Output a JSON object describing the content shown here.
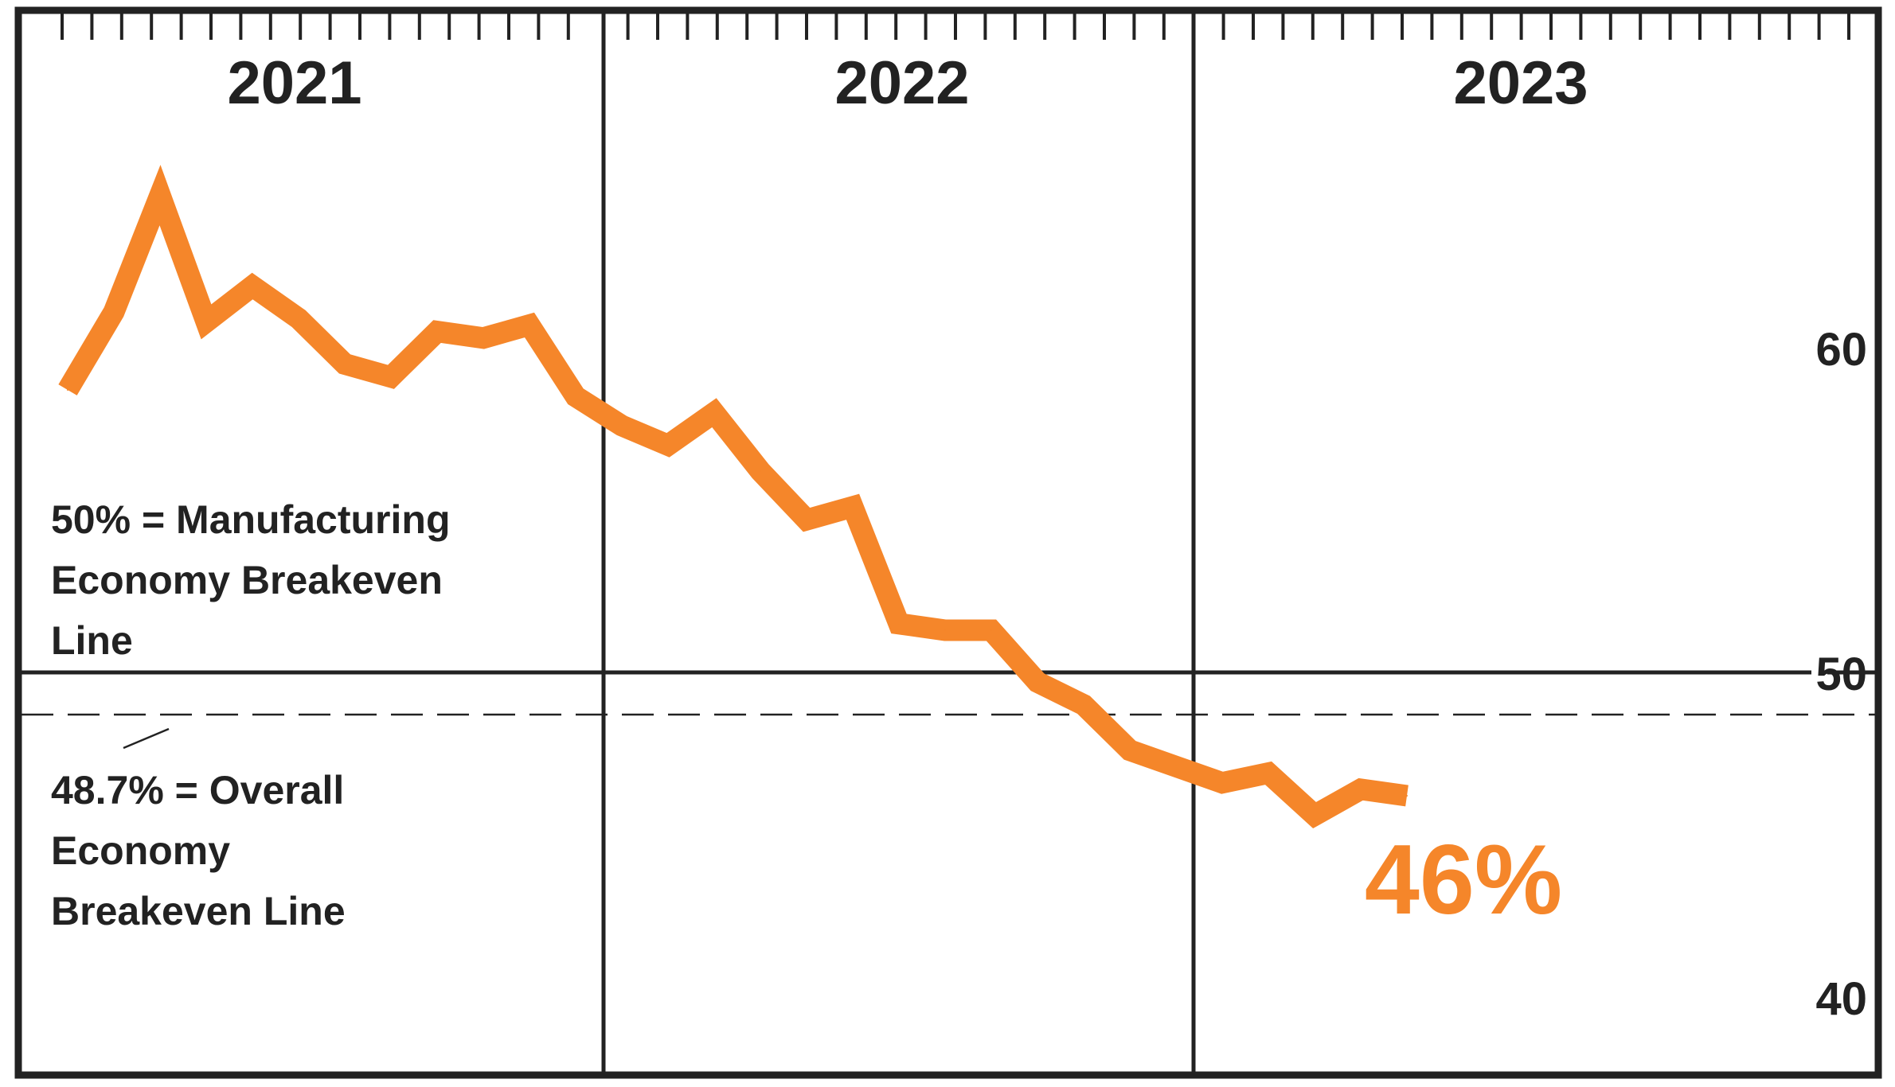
{
  "chart_data": {
    "type": "line",
    "title": "",
    "xlabel": "",
    "ylabel": "",
    "year_labels": [
      "2021",
      "2022",
      "2023"
    ],
    "y_ticks": [
      60,
      50,
      40
    ],
    "ylim": [
      38,
      70
    ],
    "grid": false,
    "line_color": "#f5862a",
    "series": [
      {
        "x": [
          "2021-01",
          "2021-02",
          "2021-03",
          "2021-04",
          "2021-05",
          "2021-06",
          "2021-07",
          "2021-08",
          "2021-09",
          "2021-10",
          "2021-11",
          "2021-12",
          "2022-01",
          "2022-02",
          "2022-03",
          "2022-04",
          "2022-05",
          "2022-06",
          "2022-07",
          "2022-08",
          "2022-09",
          "2022-10",
          "2022-11",
          "2022-12",
          "2023-01",
          "2023-02",
          "2023-03",
          "2023-04",
          "2023-05",
          "2023-06"
        ],
        "values": [
          58.7,
          61.1,
          64.7,
          60.8,
          61.9,
          60.9,
          59.5,
          59.1,
          60.5,
          60.3,
          60.7,
          58.5,
          57.6,
          57.0,
          58.0,
          56.2,
          54.7,
          55.1,
          51.5,
          51.3,
          51.3,
          49.7,
          49.0,
          47.6,
          47.1,
          46.6,
          46.9,
          45.6,
          46.4,
          46.2
        ]
      }
    ],
    "reference_lines": [
      {
        "value": 50,
        "style": "solid",
        "label": "50% = Manufacturing Economy Breakeven Line"
      },
      {
        "value": 48.7,
        "style": "dashed",
        "label": "48.7% = Overall Economy Breakeven Line"
      }
    ],
    "annotations": {
      "manufacturing_note": [
        "50% = Manufacturing",
        "Economy Breakeven",
        "Line"
      ],
      "overall_note": [
        "48.7% = Overall",
        "Economy",
        "Breakeven Line"
      ],
      "last_value_label": "46%"
    }
  }
}
